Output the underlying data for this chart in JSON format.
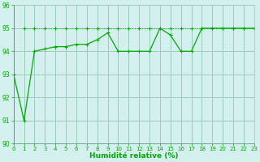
{
  "title": "",
  "xlabel": "Humidité relative (%)",
  "ylabel": "",
  "bg_color": "#d4f0ee",
  "grid_color": "#99ccbb",
  "line_color": "#00aa00",
  "xlim": [
    0,
    23
  ],
  "ylim": [
    90,
    96
  ],
  "yticks": [
    90,
    91,
    92,
    93,
    94,
    95,
    96
  ],
  "xticks": [
    0,
    1,
    2,
    3,
    4,
    5,
    6,
    7,
    8,
    9,
    10,
    11,
    12,
    13,
    14,
    15,
    16,
    17,
    18,
    19,
    20,
    21,
    22,
    23
  ],
  "line1_x": [
    1,
    2,
    3,
    4,
    5,
    6,
    7,
    8,
    9,
    10,
    11,
    12,
    13,
    14,
    15,
    16,
    17,
    18,
    19,
    20,
    21,
    22,
    23
  ],
  "line1_y": [
    95,
    95,
    95,
    95,
    95,
    95,
    95,
    95,
    95,
    95,
    95,
    95,
    95,
    95,
    95,
    95,
    95,
    95,
    95,
    95,
    95,
    95,
    95
  ],
  "line2_x": [
    0,
    1,
    2,
    3,
    4,
    5,
    6,
    7,
    8,
    9,
    10,
    11,
    12,
    13,
    14,
    15,
    16,
    17,
    18,
    19,
    20,
    21,
    22,
    23
  ],
  "line2_y": [
    93,
    91,
    94,
    94.1,
    94.2,
    94.2,
    94.3,
    94.3,
    94.5,
    94.8,
    94,
    94,
    94,
    94,
    95,
    94.7,
    94,
    94,
    95,
    95,
    95,
    95,
    95,
    95
  ]
}
